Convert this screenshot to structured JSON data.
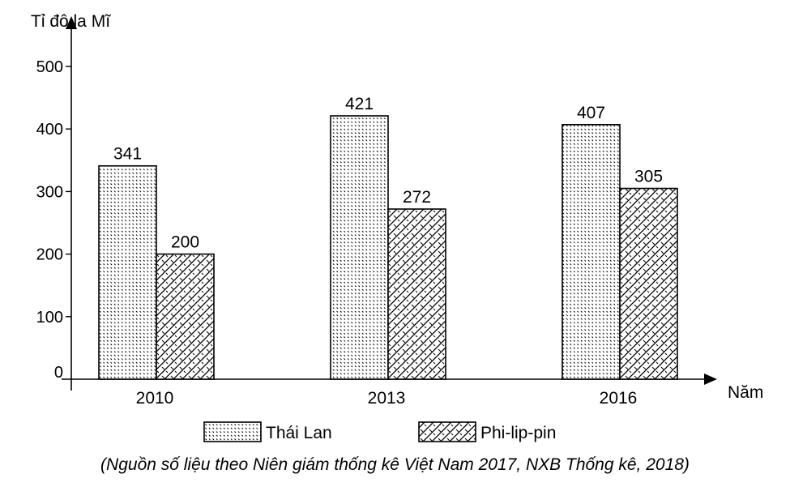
{
  "chart_data": {
    "type": "bar",
    "ylabel": "Tỉ đô la Mĩ",
    "xlabel": "Năm",
    "categories": [
      "2010",
      "2013",
      "2016"
    ],
    "series": [
      {
        "name": "Thái Lan",
        "values": [
          341,
          421,
          407
        ]
      },
      {
        "name": "Phi-lip-pin",
        "values": [
          200,
          272,
          305
        ]
      }
    ],
    "y_ticks": [
      "0",
      "100",
      "200",
      "300",
      "400",
      "500"
    ],
    "ylim": [
      0,
      500
    ],
    "grid": false,
    "legend_position": "bottom-center",
    "data_labels": [
      [
        "341",
        "421",
        "407"
      ],
      [
        "200",
        "272",
        "305"
      ]
    ]
  },
  "source_note": "(Nguồn số liệu theo Niên giám thống kê Việt Nam 2017,  NXB Thống kê, 2018)"
}
